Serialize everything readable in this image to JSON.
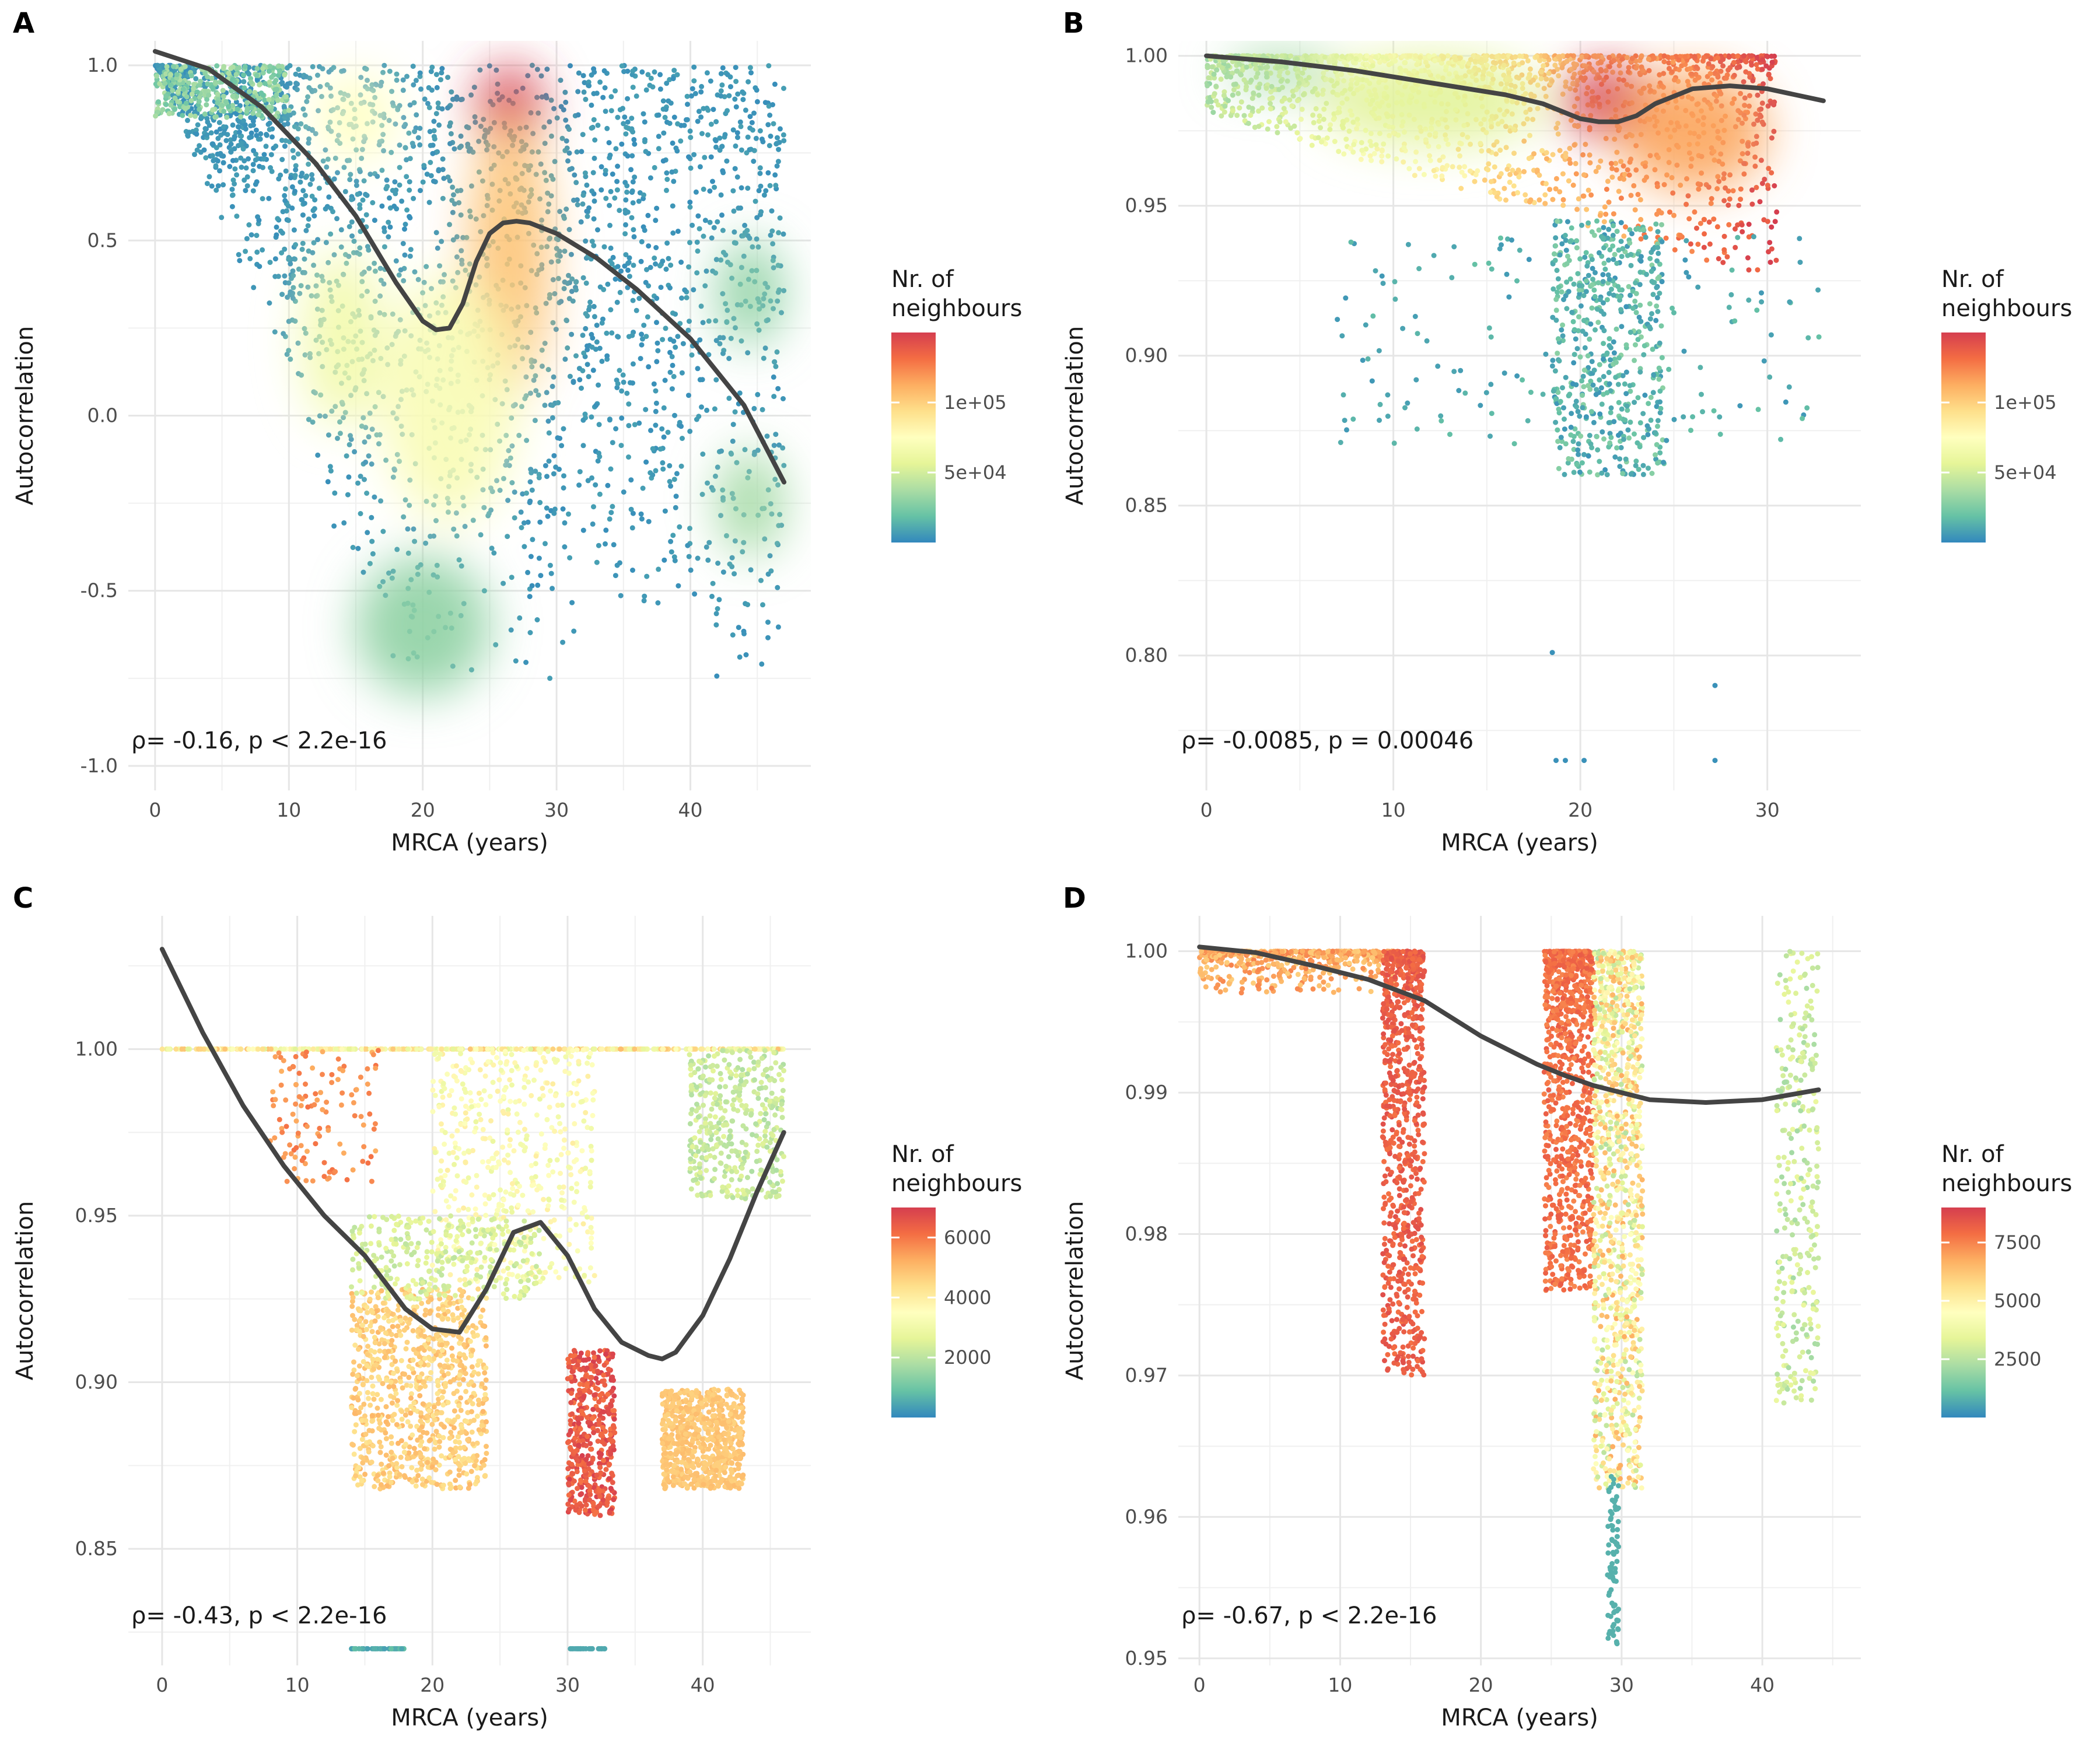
{
  "chart_data": [
    {
      "id": "A",
      "type": "scatter",
      "panel_label": "A",
      "xlabel": "MRCA (years)",
      "ylabel": "Autocorrelation",
      "xlim": [
        -2,
        49
      ],
      "ylim": [
        -1.07,
        1.07
      ],
      "xticks": [
        0,
        10,
        20,
        30,
        40
      ],
      "xtick_labels": [
        "0",
        "10",
        "20",
        "30",
        "40"
      ],
      "yticks": [
        -1.0,
        -0.5,
        0.0,
        0.5,
        1.0
      ],
      "ytick_labels": [
        "-1.0",
        "-0.5",
        "0.0",
        "0.5",
        "1.0"
      ],
      "annotation": "ρ= -0.16, p < 2.2e-16",
      "legend": {
        "title_line1": "Nr. of",
        "title_line2": "neighbours",
        "ticks": [
          50000,
          100000
        ],
        "tick_labels": [
          "5e+04",
          "1e+05"
        ],
        "range": [
          0,
          150000
        ],
        "placement": "right"
      },
      "smooth": {
        "x": [
          0,
          4,
          8,
          12,
          15,
          18,
          20,
          21,
          22,
          23,
          24,
          25,
          26,
          27,
          28,
          30,
          33,
          36,
          40,
          44,
          47
        ],
        "y": [
          1.04,
          0.99,
          0.88,
          0.72,
          0.57,
          0.38,
          0.27,
          0.245,
          0.25,
          0.32,
          0.44,
          0.52,
          0.55,
          0.555,
          0.55,
          0.52,
          0.45,
          0.36,
          0.22,
          0.03,
          -0.19
        ]
      },
      "blobs": [
        {
          "x": 26.5,
          "y": 0.88,
          "level": 150000,
          "rx": 2.5,
          "ry": 0.12
        },
        {
          "x": 26.5,
          "y": 0.45,
          "level": 105000,
          "rx": 3,
          "ry": 0.4
        },
        {
          "x": 15,
          "y": 0.85,
          "level": 75000,
          "rx": 3,
          "ry": 0.12
        },
        {
          "x": 14,
          "y": 0.22,
          "level": 65000,
          "rx": 3,
          "ry": 0.25
        },
        {
          "x": 22,
          "y": 0.05,
          "level": 70000,
          "rx": 5,
          "ry": 0.35
        },
        {
          "x": 44.5,
          "y": -0.25,
          "level": 35000,
          "rx": 2.5,
          "ry": 0.15
        },
        {
          "x": 44.5,
          "y": 0.35,
          "level": 30000,
          "rx": 2.5,
          "ry": 0.15
        },
        {
          "x": 20,
          "y": -0.6,
          "level": 30000,
          "rx": 5,
          "ry": 0.2
        }
      ]
    },
    {
      "id": "B",
      "type": "scatter",
      "panel_label": "B",
      "xlabel": "MRCA (years)",
      "ylabel": "Autocorrelation",
      "xlim": [
        -1.5,
        35
      ],
      "ylim": [
        0.755,
        1.005
      ],
      "xticks": [
        0,
        10,
        20,
        30
      ],
      "xtick_labels": [
        "0",
        "10",
        "20",
        "30"
      ],
      "yticks": [
        0.8,
        0.85,
        0.9,
        0.95,
        1.0
      ],
      "ytick_labels": [
        "0.80",
        "0.85",
        "0.90",
        "0.95",
        "1.00"
      ],
      "annotation": "ρ= -0.0085, p = 0.00046",
      "legend": {
        "title_line1": "Nr. of",
        "title_line2": "neighbours",
        "ticks": [
          50000,
          100000
        ],
        "tick_labels": [
          "5e+04",
          "1e+05"
        ],
        "range": [
          0,
          150000
        ],
        "placement": "right"
      },
      "smooth": {
        "x": [
          0,
          4,
          8,
          12,
          16,
          18,
          20,
          21,
          22,
          23,
          24,
          26,
          28,
          30,
          33
        ],
        "y": [
          1.0,
          0.998,
          0.995,
          0.991,
          0.987,
          0.984,
          0.979,
          0.978,
          0.978,
          0.98,
          0.984,
          0.989,
          0.99,
          0.989,
          0.985
        ]
      },
      "blobs": [
        {
          "x": 21.5,
          "y": 0.985,
          "level": 150000,
          "rx": 2.5,
          "ry": 0.012
        },
        {
          "x": 26,
          "y": 0.975,
          "level": 115000,
          "rx": 4,
          "ry": 0.02
        },
        {
          "x": 12,
          "y": 0.985,
          "level": 55000,
          "rx": 6,
          "ry": 0.015
        },
        {
          "x": 4,
          "y": 0.995,
          "level": 35000,
          "rx": 3,
          "ry": 0.006
        }
      ]
    },
    {
      "id": "C",
      "type": "scatter",
      "panel_label": "C",
      "xlabel": "MRCA (years)",
      "ylabel": "Autocorrelation",
      "xlim": [
        -2.5,
        48
      ],
      "ylim": [
        0.815,
        1.04
      ],
      "xticks": [
        0,
        10,
        20,
        30,
        40
      ],
      "xtick_labels": [
        "0",
        "10",
        "20",
        "30",
        "40"
      ],
      "yticks": [
        0.85,
        0.9,
        0.95,
        1.0
      ],
      "ytick_labels": [
        "0.85",
        "0.90",
        "0.95",
        "1.00"
      ],
      "annotation": "ρ= -0.43, p < 2.2e-16",
      "legend": {
        "title_line1": "Nr. of",
        "title_line2": "neighbours",
        "ticks": [
          2000,
          4000,
          6000
        ],
        "tick_labels": [
          "2000",
          "4000",
          "6000"
        ],
        "range": [
          0,
          7000
        ],
        "placement": "right"
      },
      "smooth": {
        "x": [
          0,
          3,
          6,
          9,
          12,
          15,
          18,
          20,
          22,
          24,
          26,
          28,
          30,
          32,
          34,
          36,
          37,
          38,
          40,
          42,
          44,
          46
        ],
        "y": [
          1.03,
          1.005,
          0.983,
          0.965,
          0.95,
          0.938,
          0.922,
          0.916,
          0.915,
          0.928,
          0.945,
          0.948,
          0.938,
          0.922,
          0.912,
          0.908,
          0.907,
          0.909,
          0.92,
          0.937,
          0.957,
          0.975
        ]
      }
    },
    {
      "id": "D",
      "type": "scatter",
      "panel_label": "D",
      "xlabel": "MRCA (years)",
      "ylabel": "Autocorrelation",
      "xlim": [
        -1.5,
        47
      ],
      "ylim": [
        0.9495,
        1.0025
      ],
      "xticks": [
        0,
        10,
        20,
        30,
        40
      ],
      "xtick_labels": [
        "0",
        "10",
        "20",
        "30",
        "40"
      ],
      "yticks": [
        0.95,
        0.96,
        0.97,
        0.98,
        0.99,
        1.0
      ],
      "ytick_labels": [
        "0.95",
        "0.96",
        "0.97",
        "0.98",
        "0.99",
        "1.00"
      ],
      "annotation": "ρ= -0.67, p < 2.2e-16",
      "legend": {
        "title_line1": "Nr. of",
        "title_line2": "neighbours",
        "ticks": [
          2500,
          5000,
          7500
        ],
        "tick_labels": [
          "2500",
          "5000",
          "7500"
        ],
        "range": [
          0,
          9000
        ],
        "placement": "right"
      },
      "smooth": {
        "x": [
          0,
          4,
          8,
          12,
          16,
          20,
          24,
          26,
          28,
          30,
          32,
          36,
          40,
          44
        ],
        "y": [
          1.0003,
          0.9999,
          0.999,
          0.998,
          0.9965,
          0.994,
          0.992,
          0.9912,
          0.9905,
          0.99,
          0.9895,
          0.9893,
          0.9895,
          0.9902
        ]
      }
    }
  ]
}
